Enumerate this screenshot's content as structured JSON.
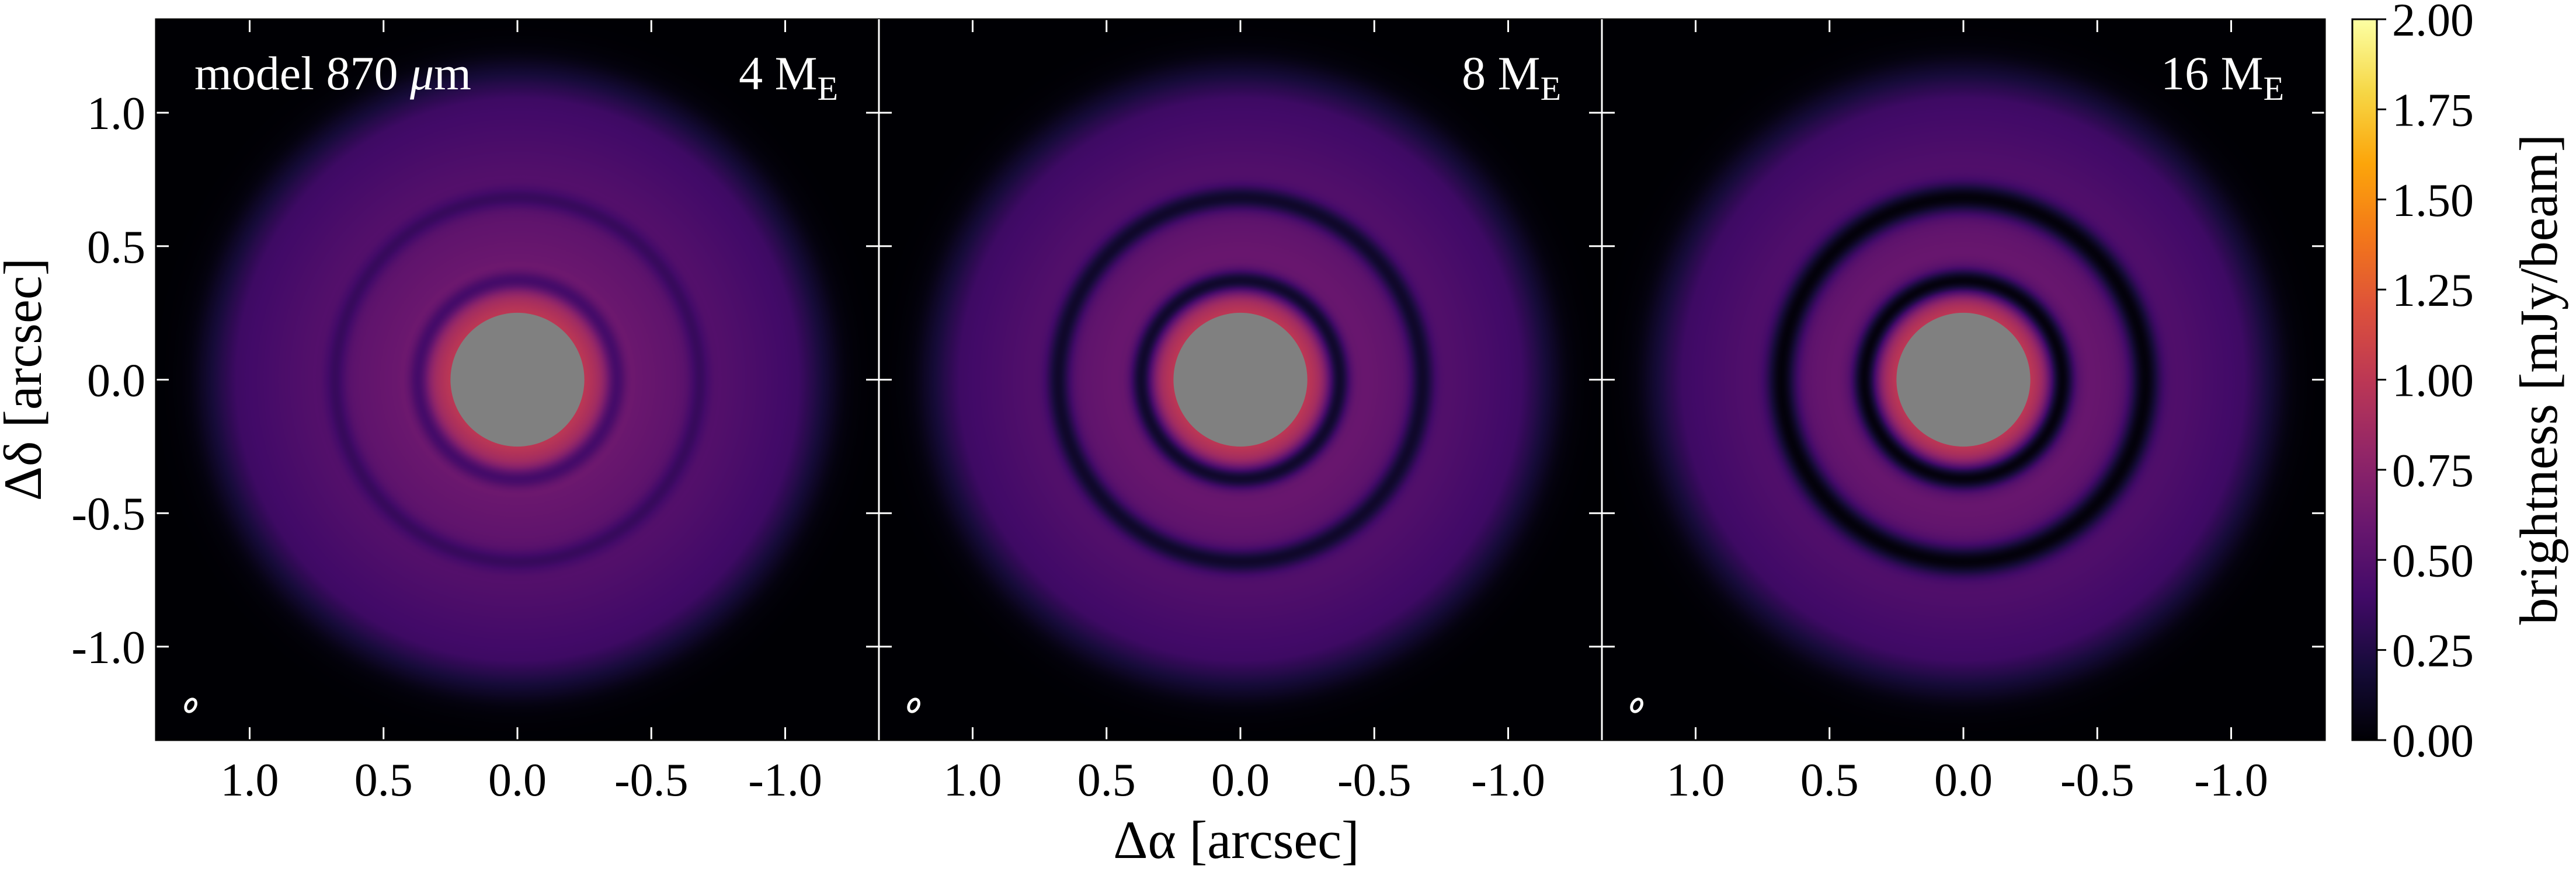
{
  "chart_data": {
    "type": "heatmap",
    "panels": [
      {
        "model_label": "model 870 μm",
        "mass_value": "4",
        "mass_unit": "M",
        "mass_subscript": "E",
        "planet_gaps": [
          {
            "r": 0.37,
            "strength": 0.45,
            "width": 0.04
          },
          {
            "r": 0.68,
            "strength": 0.32,
            "width": 0.04
          }
        ]
      },
      {
        "model_label": "",
        "mass_value": "8",
        "mass_unit": "M",
        "mass_subscript": "E",
        "planet_gaps": [
          {
            "r": 0.37,
            "strength": 0.8,
            "width": 0.045
          },
          {
            "r": 0.68,
            "strength": 0.72,
            "width": 0.045
          }
        ]
      },
      {
        "model_label": "",
        "mass_value": "16",
        "mass_unit": "M",
        "mass_subscript": "E",
        "planet_gaps": [
          {
            "r": 0.37,
            "strength": 0.95,
            "width": 0.05
          },
          {
            "r": 0.68,
            "strength": 0.95,
            "width": 0.055
          }
        ]
      }
    ],
    "xlabel": "Δα [arcsec]",
    "ylabel": "Δδ [arcsec]",
    "x_ticks": [
      "1.0",
      "0.5",
      "0.0",
      "-0.5",
      "-1.0"
    ],
    "x_tick_values": [
      1.0,
      0.5,
      0.0,
      -0.5,
      -1.0
    ],
    "y_ticks": [
      "1.0",
      "0.5",
      "0.0",
      "-0.5",
      "-1.0"
    ],
    "y_tick_values": [
      1.0,
      0.5,
      0.0,
      -0.5,
      -1.0
    ],
    "xlim": [
      1.35,
      -1.35
    ],
    "ylim": [
      -1.35,
      1.35
    ],
    "colorbar": {
      "label": "brightness [mJy/beam]",
      "ticks": [
        "0.00",
        "0.25",
        "0.50",
        "0.75",
        "1.00",
        "1.25",
        "1.50",
        "1.75",
        "2.00"
      ],
      "tick_values": [
        0,
        0.25,
        0.5,
        0.75,
        1.0,
        1.25,
        1.5,
        1.75,
        2.0
      ],
      "range": [
        0,
        2.0
      ],
      "colormap": "inferno"
    },
    "masked_inner_radius_arcsec": 0.25,
    "mask_color": "#808080",
    "disk_outer_radius_arcsec": 1.2,
    "beam": {
      "x": 1.22,
      "y": -1.22,
      "major": 0.025,
      "minor": 0.017,
      "color": "#ffffff"
    }
  }
}
